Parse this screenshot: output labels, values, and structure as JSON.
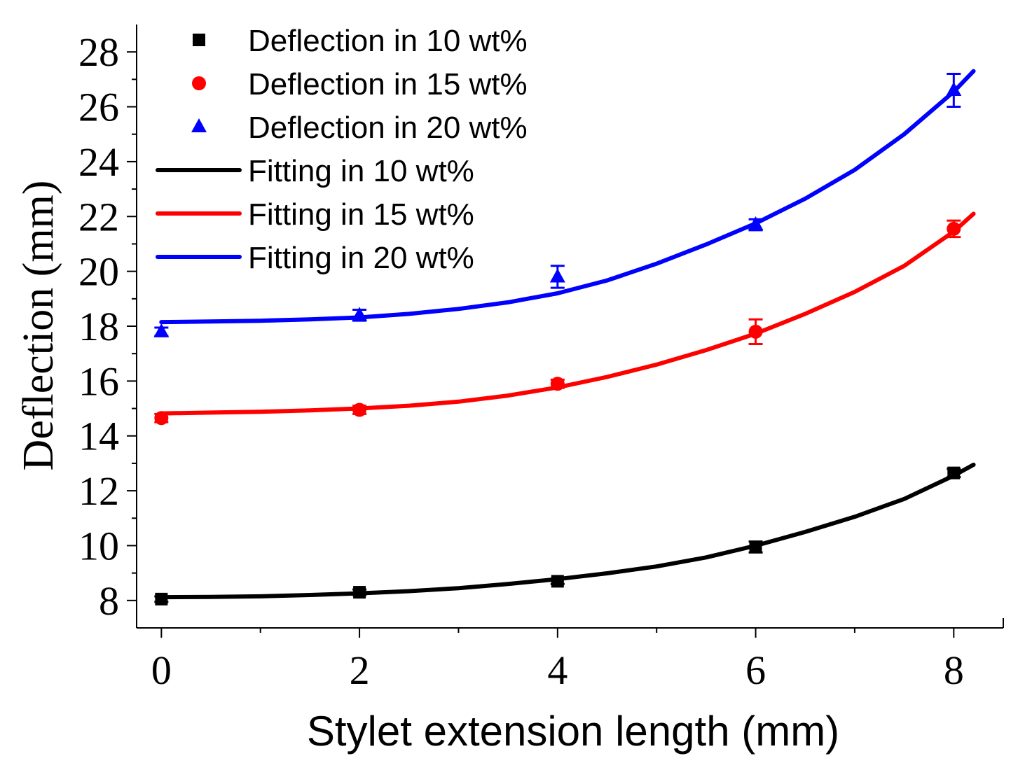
{
  "chart_data": {
    "type": "scatter",
    "title": "",
    "xlabel": "Stylet extension length (mm)",
    "ylabel": "Deflection (mm)",
    "xlim": [
      -0.25,
      8.5
    ],
    "ylim": [
      7,
      29
    ],
    "xticks": [
      0,
      2,
      4,
      6,
      8
    ],
    "yticks": [
      8,
      10,
      12,
      14,
      16,
      18,
      20,
      22,
      24,
      26,
      28
    ],
    "x_minor_ticks": [
      1,
      3,
      5,
      7
    ],
    "y_minor_ticks": [
      9,
      11,
      13,
      15,
      17,
      19,
      21,
      23,
      25,
      27
    ],
    "grid": false,
    "legend_position": "top-left",
    "series": [
      {
        "name": "Deflection in 10 wt%",
        "kind": "points",
        "marker": "square",
        "color": "#000000",
        "x": [
          0,
          2,
          4,
          6,
          8
        ],
        "y": [
          8.05,
          8.3,
          8.7,
          9.95,
          12.65
        ],
        "err": [
          0.1,
          0.1,
          0.1,
          0.2,
          0.15
        ]
      },
      {
        "name": "Deflection in 15 wt%",
        "kind": "points",
        "marker": "circle",
        "color": "#ff0000",
        "x": [
          0,
          2,
          4,
          6,
          8
        ],
        "y": [
          14.65,
          14.95,
          15.9,
          17.8,
          21.55
        ],
        "err": [
          0.15,
          0.15,
          0.15,
          0.45,
          0.3
        ]
      },
      {
        "name": "Deflection in 20 wt%",
        "kind": "points",
        "marker": "triangle",
        "color": "#0000ff",
        "x": [
          0,
          2,
          4,
          6,
          8
        ],
        "y": [
          17.8,
          18.4,
          19.8,
          21.7,
          26.6
        ],
        "err": [
          0.15,
          0.2,
          0.4,
          0.2,
          0.6
        ]
      },
      {
        "name": "Fitting in 10 wt%",
        "kind": "line",
        "color": "#000000",
        "x": [
          0,
          0.5,
          1,
          1.5,
          2,
          2.5,
          3,
          3.5,
          4,
          4.5,
          5,
          5.5,
          6,
          6.5,
          7,
          7.5,
          8,
          8.2
        ],
        "y": [
          8.12,
          8.13,
          8.15,
          8.2,
          8.26,
          8.34,
          8.45,
          8.6,
          8.78,
          8.99,
          9.24,
          9.57,
          10.0,
          10.5,
          11.05,
          11.7,
          12.55,
          12.95
        ]
      },
      {
        "name": "Fitting in 15 wt%",
        "kind": "line",
        "color": "#ff0000",
        "x": [
          0,
          0.5,
          1,
          1.5,
          2,
          2.5,
          3,
          3.5,
          4,
          4.5,
          5,
          5.5,
          6,
          6.5,
          7,
          7.5,
          8,
          8.2
        ],
        "y": [
          14.82,
          14.85,
          14.88,
          14.93,
          15.0,
          15.1,
          15.25,
          15.47,
          15.77,
          16.15,
          16.6,
          17.13,
          17.73,
          18.45,
          19.25,
          20.2,
          21.45,
          22.1
        ]
      },
      {
        "name": "Fitting in 20 wt%",
        "kind": "line",
        "color": "#0000ff",
        "x": [
          0,
          0.5,
          1,
          1.5,
          2,
          2.5,
          3,
          3.5,
          4,
          4.5,
          5,
          5.5,
          6,
          6.5,
          7,
          7.5,
          8,
          8.2
        ],
        "y": [
          18.15,
          18.17,
          18.2,
          18.25,
          18.32,
          18.45,
          18.63,
          18.87,
          19.2,
          19.67,
          20.28,
          20.98,
          21.75,
          22.65,
          23.7,
          25.0,
          26.55,
          27.3
        ]
      }
    ]
  }
}
